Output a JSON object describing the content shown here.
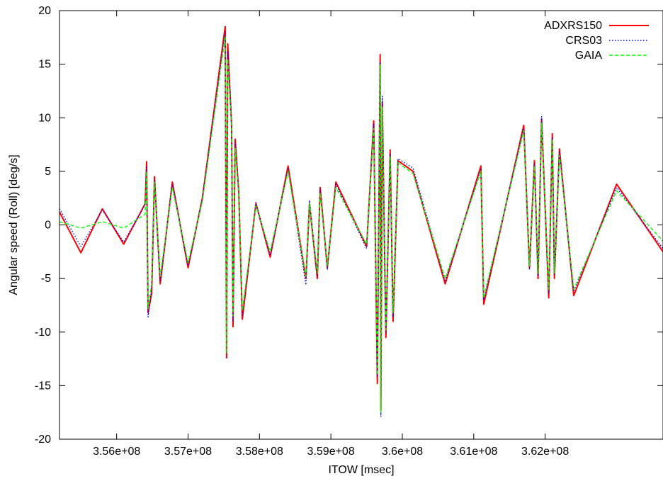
{
  "chart_data": {
    "type": "line",
    "title": "",
    "xlabel": "ITOW [msec]",
    "ylabel": "Angular speed (Roll) [deg/s]",
    "xlim": [
      355200000,
      363650000
    ],
    "ylim": [
      -20,
      20
    ],
    "xticks": [
      356000000,
      357000000,
      358000000,
      359000000,
      360000000,
      361000000,
      362000000
    ],
    "xtick_labels": [
      "3.56e+08",
      "3.57e+08",
      "3.58e+08",
      "3.59e+08",
      "3.6e+08",
      "3.61e+08",
      "3.62e+08"
    ],
    "yticks": [
      -20,
      -15,
      -10,
      -5,
      0,
      5,
      10,
      15,
      20
    ],
    "ytick_labels": [
      "-20",
      "-15",
      "-10",
      "-5",
      "0",
      "5",
      "10",
      "15",
      "20"
    ],
    "grid": false,
    "legend_position": "top-right",
    "series": [
      {
        "name": "ADXRS150",
        "color": "#ff0000",
        "style": "solid",
        "x": [
          355200000,
          355500000,
          355800000,
          356100000,
          356400000,
          356420000,
          356440000,
          356490000,
          356530000,
          356610000,
          356780000,
          357000000,
          357200000,
          357520000,
          357540000,
          357555000,
          357610000,
          357630000,
          357660000,
          357710000,
          357760000,
          357950000,
          358150000,
          358400000,
          358650000,
          358700000,
          358810000,
          358850000,
          358950000,
          359070000,
          359500000,
          359600000,
          359650000,
          359690000,
          359700000,
          359720000,
          359770000,
          359830000,
          359870000,
          359940000,
          360150000,
          360600000,
          361100000,
          361140000,
          361700000,
          361780000,
          361850000,
          361900000,
          361950000,
          362050000,
          362100000,
          362130000,
          362200000,
          362400000,
          363000000,
          363650000
        ],
        "y": [
          1.2,
          -2.6,
          1.5,
          -1.8,
          2.0,
          5.9,
          -8.2,
          -6.4,
          4.5,
          -5.5,
          4.0,
          -4.0,
          2.5,
          18.5,
          -12.4,
          16.9,
          9.2,
          -9.5,
          8.0,
          3.0,
          -8.8,
          2.0,
          -3.0,
          5.5,
          -5.0,
          2.0,
          -5.0,
          3.5,
          -4.0,
          4.0,
          -2.0,
          9.7,
          -14.8,
          15.9,
          -17.3,
          11.5,
          -10.5,
          7.0,
          -9.0,
          6.0,
          5.0,
          -5.5,
          5.5,
          -7.4,
          9.3,
          -4.0,
          6.0,
          -5.0,
          9.9,
          -6.8,
          8.5,
          -5.0,
          7.1,
          -6.6,
          3.8,
          -2.5
        ]
      },
      {
        "name": "CRS03",
        "color": "#0000ff",
        "style": "dotted",
        "x": [
          355200000,
          355500000,
          355800000,
          356100000,
          356400000,
          356420000,
          356440000,
          356490000,
          356530000,
          356610000,
          356780000,
          357000000,
          357200000,
          357520000,
          357540000,
          357555000,
          357610000,
          357630000,
          357660000,
          357710000,
          357760000,
          357950000,
          358150000,
          358400000,
          358650000,
          358700000,
          358810000,
          358850000,
          358950000,
          359070000,
          359500000,
          359600000,
          359650000,
          359690000,
          359700000,
          359720000,
          359770000,
          359830000,
          359870000,
          359940000,
          360150000,
          360600000,
          361100000,
          361140000,
          361700000,
          361780000,
          361850000,
          361900000,
          361950000,
          362050000,
          362100000,
          362130000,
          362200000,
          362400000,
          363000000,
          363650000
        ],
        "y": [
          1.5,
          -2.0,
          1.4,
          -1.6,
          1.9,
          5.5,
          -8.6,
          -6.0,
          4.2,
          -5.2,
          3.8,
          -3.8,
          2.4,
          18.0,
          -11.9,
          16.2,
          9.5,
          -9.0,
          7.6,
          3.2,
          -8.4,
          2.1,
          -2.8,
          5.2,
          -5.6,
          2.3,
          -4.7,
          3.3,
          -4.2,
          3.8,
          -2.2,
          9.4,
          -14.2,
          15.2,
          -17.9,
          12.0,
          -10.0,
          6.6,
          -8.6,
          6.2,
          5.3,
          -5.2,
          5.2,
          -7.0,
          9.0,
          -4.2,
          5.7,
          -4.8,
          10.1,
          -6.4,
          8.2,
          -4.6,
          6.8,
          -6.2,
          3.5,
          -2.2
        ]
      },
      {
        "name": "GAIA",
        "color": "#00ff00",
        "style": "dashed",
        "x": [
          355200000,
          355500000,
          355800000,
          356100000,
          356400000,
          356420000,
          356440000,
          356490000,
          356530000,
          356610000,
          356780000,
          357000000,
          357200000,
          357520000,
          357540000,
          357555000,
          357610000,
          357630000,
          357660000,
          357710000,
          357760000,
          357950000,
          358150000,
          358400000,
          358650000,
          358700000,
          358810000,
          358850000,
          358950000,
          359070000,
          359500000,
          359600000,
          359650000,
          359690000,
          359700000,
          359720000,
          359770000,
          359830000,
          359870000,
          359940000,
          360150000,
          360600000,
          361100000,
          361140000,
          361700000,
          361780000,
          361850000,
          361900000,
          361950000,
          362050000,
          362100000,
          362130000,
          362200000,
          362400000,
          363000000,
          363650000
        ],
        "y": [
          0.3,
          -0.3,
          0.3,
          -0.3,
          1.0,
          5.0,
          -7.8,
          -5.5,
          4.0,
          -4.8,
          3.5,
          -3.5,
          2.2,
          17.6,
          -12.0,
          15.5,
          9.0,
          -8.5,
          7.2,
          2.8,
          -8.0,
          1.8,
          -2.5,
          5.0,
          -4.8,
          2.0,
          -4.5,
          3.0,
          -3.8,
          3.5,
          -1.8,
          9.0,
          -14.0,
          15.0,
          -17.5,
          11.0,
          -9.8,
          6.4,
          -8.2,
          5.8,
          4.8,
          -5.0,
          5.0,
          -6.8,
          8.8,
          -3.8,
          5.5,
          -4.5,
          9.5,
          -6.0,
          8.0,
          -4.5,
          6.5,
          -6.0,
          3.2,
          -1.5
        ]
      }
    ]
  }
}
